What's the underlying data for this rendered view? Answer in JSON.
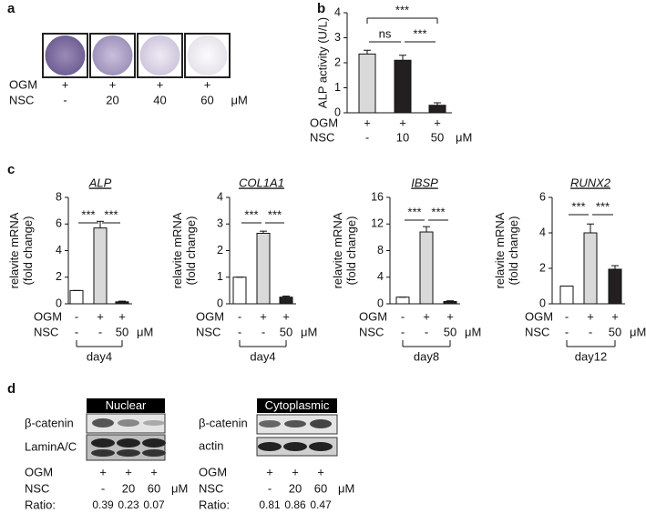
{
  "panel_labels": [
    "a",
    "b",
    "c",
    "d"
  ],
  "panel_a": {
    "rows": [
      {
        "label": "OGM",
        "cells": [
          "+",
          "+",
          "+",
          "+"
        ]
      },
      {
        "label": "NSC",
        "cells": [
          "-",
          "20",
          "40",
          "60"
        ],
        "unit": "μM"
      }
    ]
  },
  "chart_data": [
    {
      "type": "bar",
      "ylabel": [
        "ALP activity (U/L)"
      ],
      "values": [
        2.35,
        2.1,
        0.3
      ],
      "errors": [
        0.15,
        0.2,
        0.1
      ],
      "colors": [
        "#d9d9d9",
        "#231f20",
        "#231f20"
      ],
      "ylim": [
        0,
        4
      ],
      "yticks": [
        0,
        1,
        2,
        3,
        4
      ],
      "significance": [
        "***",
        "ns",
        "***"
      ],
      "rows": [
        {
          "label": "OGM",
          "cells": [
            "+",
            "+",
            "+"
          ]
        },
        {
          "label": "NSC",
          "cells": [
            "-",
            "10",
            "50"
          ],
          "unit": "μM"
        }
      ]
    },
    {
      "type": "bar",
      "title": "ALP",
      "ylabel": [
        "relavite mRNA",
        "(fold change)"
      ],
      "values": [
        1,
        5.7,
        0.15
      ],
      "errors": [
        0,
        0.5,
        0.05
      ],
      "colors": [
        "#ffffff",
        "#d9d9d9",
        "#231f20"
      ],
      "ylim": [
        0,
        8
      ],
      "yticks": [
        0,
        2,
        4,
        6,
        8
      ],
      "significance": [
        "***",
        "***"
      ],
      "rows": [
        {
          "label": "OGM",
          "cells": [
            "-",
            "+",
            "+"
          ]
        },
        {
          "label": "NSC",
          "cells": [
            "-",
            "-",
            "50"
          ],
          "unit": "μM"
        }
      ],
      "group_label": "day4"
    },
    {
      "type": "bar",
      "title": "COL1A1",
      "ylabel": [
        "relavite mRNA",
        "(fold change)"
      ],
      "values": [
        1,
        2.65,
        0.25
      ],
      "errors": [
        0,
        0.08,
        0.04
      ],
      "colors": [
        "#ffffff",
        "#d9d9d9",
        "#231f20"
      ],
      "ylim": [
        0,
        4
      ],
      "yticks": [
        0,
        1,
        2,
        3,
        4
      ],
      "significance": [
        "***",
        "***"
      ],
      "rows": [
        {
          "label": "OGM",
          "cells": [
            "-",
            "+",
            "+"
          ]
        },
        {
          "label": "NSC",
          "cells": [
            "-",
            "-",
            "50"
          ],
          "unit": "μM"
        }
      ],
      "group_label": "day4"
    },
    {
      "type": "bar",
      "title": "IBSP",
      "ylabel": [
        "relavite mRNA",
        "(fold change)"
      ],
      "values": [
        1,
        10.8,
        0.35
      ],
      "errors": [
        0,
        0.8,
        0.1
      ],
      "colors": [
        "#ffffff",
        "#d9d9d9",
        "#231f20"
      ],
      "ylim": [
        0,
        16
      ],
      "yticks": [
        0,
        4,
        8,
        12,
        16
      ],
      "significance": [
        "***",
        "***"
      ],
      "rows": [
        {
          "label": "OGM",
          "cells": [
            "-",
            "+",
            "+"
          ]
        },
        {
          "label": "NSC",
          "cells": [
            "-",
            "-",
            "50"
          ],
          "unit": "μM"
        }
      ],
      "group_label": "day8"
    },
    {
      "type": "bar",
      "title": "RUNX2",
      "ylabel": [
        "relavite mRNA",
        "(fold change)"
      ],
      "values": [
        1,
        4.0,
        1.95
      ],
      "errors": [
        0,
        0.5,
        0.2
      ],
      "colors": [
        "#ffffff",
        "#d9d9d9",
        "#231f20"
      ],
      "ylim": [
        0,
        6
      ],
      "yticks": [
        0,
        2,
        4,
        6
      ],
      "significance": [
        "***",
        "***"
      ],
      "rows": [
        {
          "label": "OGM",
          "cells": [
            "-",
            "+",
            "+"
          ]
        },
        {
          "label": "NSC",
          "cells": [
            "-",
            "-",
            "50"
          ],
          "unit": "μM"
        }
      ],
      "group_label": "day12"
    }
  ],
  "panel_d": {
    "nuclear": {
      "header": "Nuclear",
      "blot_labels": [
        "β-catenin",
        "LaminA/C"
      ],
      "rows": [
        {
          "label": "OGM",
          "cells": [
            "+",
            "+",
            "+"
          ]
        },
        {
          "label": "NSC",
          "cells": [
            "-",
            "20",
            "60"
          ],
          "unit": "μM"
        },
        {
          "label": "Ratio:",
          "cells": [
            "0.39",
            "0.23",
            "0.07"
          ]
        }
      ]
    },
    "cytoplasmic": {
      "header": "Cytoplasmic",
      "blot_labels": [
        "β-catenin",
        "actin"
      ],
      "rows": [
        {
          "label": "OGM",
          "cells": [
            "+",
            "+",
            "+"
          ]
        },
        {
          "label": "NSC",
          "cells": [
            "-",
            "20",
            "60"
          ],
          "unit": "μM"
        },
        {
          "label": "Ratio:",
          "cells": [
            "0.81",
            "0.86",
            "0.47"
          ]
        }
      ]
    }
  }
}
